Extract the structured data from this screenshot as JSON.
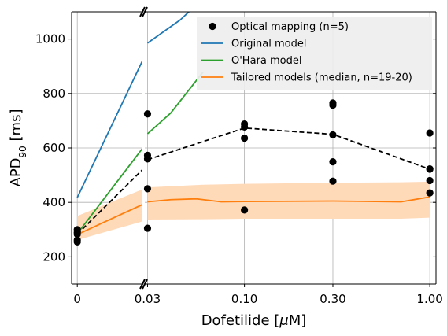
{
  "chart_data": {
    "type": "line",
    "xlabel": "Dofetilide [μM]",
    "ylabel": "APD90 [ms]",
    "ylim": [
      100,
      1100
    ],
    "y_ticks": [
      200,
      400,
      600,
      800,
      1000
    ],
    "y_tick_labels": [
      "200",
      "400",
      "600",
      "800",
      "1000"
    ],
    "broken_x_axis": true,
    "x_left_panel": {
      "range": [
        -0.001,
        0.0115
      ],
      "ticks": [
        0
      ],
      "tick_labels": [
        "0"
      ]
    },
    "x_right_panel": {
      "scale": "log",
      "range": [
        0.029,
        1.08
      ],
      "ticks": [
        0.03,
        0.1,
        0.3,
        1.0
      ],
      "tick_labels": [
        "0.03",
        "0.10",
        "0.30",
        "1.00"
      ]
    },
    "grid": true,
    "legend_position": "upper right",
    "series": [
      {
        "name": "Optical mapping (n=5)",
        "kind": "scatter",
        "color": "#000000",
        "points": [
          [
            0,
            255
          ],
          [
            0,
            262
          ],
          [
            0,
            283
          ],
          [
            0,
            290
          ],
          [
            0,
            300
          ],
          [
            0.03,
            305
          ],
          [
            0.03,
            450
          ],
          [
            0.03,
            560
          ],
          [
            0.03,
            573
          ],
          [
            0.03,
            725
          ],
          [
            0.1,
            372
          ],
          [
            0.1,
            636
          ],
          [
            0.1,
            677
          ],
          [
            0.1,
            688
          ],
          [
            0.3,
            478
          ],
          [
            0.3,
            549
          ],
          [
            0.3,
            648
          ],
          [
            0.3,
            757
          ],
          [
            0.3,
            765
          ],
          [
            1.0,
            435
          ],
          [
            1.0,
            480
          ],
          [
            1.0,
            522
          ],
          [
            1.0,
            523
          ],
          [
            1.0,
            655
          ]
        ]
      },
      {
        "name": "",
        "kind": "mean-line",
        "color": "#000000",
        "style": "dashed",
        "points": [
          [
            0,
            283
          ],
          [
            0.0115,
            520
          ],
          [
            0.03,
            557
          ],
          [
            0.1,
            673
          ],
          [
            0.3,
            650
          ],
          [
            1.0,
            522
          ]
        ]
      },
      {
        "name": "Original model",
        "kind": "line",
        "color": "#1f77b4",
        "points": [
          [
            0,
            418
          ],
          [
            0.0115,
            920
          ],
          [
            0.03,
            985
          ],
          [
            0.045,
            1070
          ],
          [
            0.052,
            1110
          ]
        ]
      },
      {
        "name": "O'Hara model",
        "kind": "line",
        "color": "#2ca02c",
        "points": [
          [
            0,
            285
          ],
          [
            0.0115,
            598
          ],
          [
            0.03,
            652
          ],
          [
            0.04,
            728
          ],
          [
            0.06,
            880
          ]
        ]
      },
      {
        "name": "Tailored models (median, n=19-20)",
        "kind": "line",
        "color": "#ff7f0e",
        "points": [
          [
            0,
            282
          ],
          [
            0.0115,
            392
          ],
          [
            0.03,
            402
          ],
          [
            0.04,
            410
          ],
          [
            0.055,
            413
          ],
          [
            0.075,
            402
          ],
          [
            0.1,
            403
          ],
          [
            0.3,
            405
          ],
          [
            0.7,
            402
          ],
          [
            1.0,
            420
          ]
        ]
      }
    ],
    "band": {
      "series": "Tailored models (median, n=19-20)",
      "color": "#ffdab9",
      "upper": [
        [
          0,
          350
        ],
        [
          0.0115,
          448
        ],
        [
          0.03,
          455
        ],
        [
          0.06,
          465
        ],
        [
          0.1,
          468
        ],
        [
          0.3,
          472
        ],
        [
          0.7,
          474
        ],
        [
          1.0,
          476
        ]
      ],
      "lower": [
        [
          0,
          262
        ],
        [
          0.0115,
          330
        ],
        [
          0.03,
          337
        ],
        [
          0.06,
          338
        ],
        [
          0.1,
          340
        ],
        [
          0.3,
          340
        ],
        [
          0.7,
          340
        ],
        [
          1.0,
          344
        ]
      ]
    }
  }
}
